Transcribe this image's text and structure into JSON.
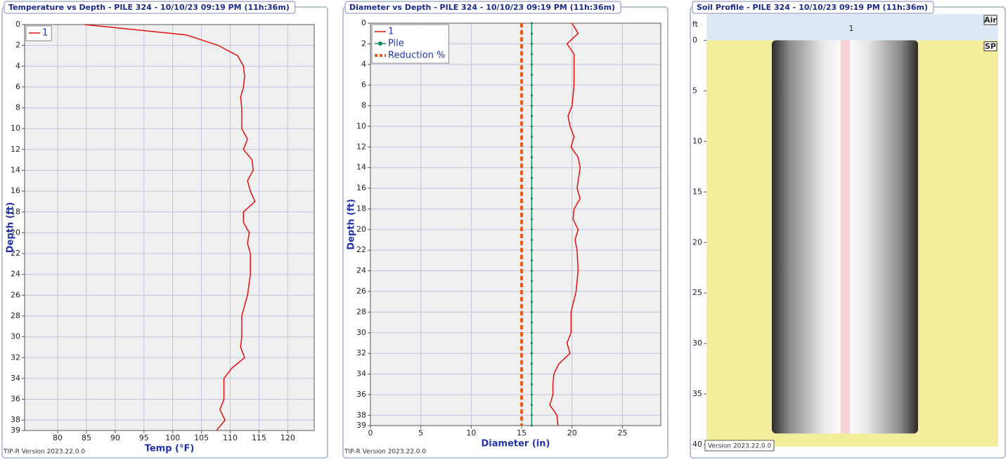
{
  "chart_data": [
    {
      "type": "line",
      "title": "Temperature vs Depth - PILE 324 - 10/10/23 09:19 PM (11h:36m)",
      "x_label": "Temp (°F)",
      "y_label": "Depth (ft)",
      "footer": "TIP-R Version 2023.22.0.0",
      "xlim": [
        74.25,
        124.6
      ],
      "xticks": [
        80,
        85,
        90,
        95,
        100,
        105,
        110,
        115,
        120
      ],
      "ylim": [
        0,
        39
      ],
      "yticks": [
        0,
        2,
        4,
        6,
        8,
        10,
        12,
        14,
        16,
        18,
        20,
        22,
        24,
        26,
        28,
        30,
        32,
        34,
        36,
        38,
        39
      ],
      "grid": true,
      "legend": "upper left",
      "series": [
        {
          "name": "1",
          "color": "#e01010",
          "x": [
            84.7,
            102.4,
            107.9,
            111.3,
            112.3,
            112.5,
            112.3,
            111.8,
            112.0,
            112.0,
            113.0,
            112.3,
            113.8,
            114.0,
            113.0,
            113.5,
            114.3,
            112.3,
            112.3,
            113.3,
            113.0,
            113.5,
            113.5,
            113.0,
            112.5,
            112.0,
            112.0,
            111.8,
            112.5,
            110.3,
            108.9,
            108.9,
            108.2,
            109.1,
            107.6
          ],
          "y": [
            0,
            1,
            2,
            3,
            4,
            5,
            6,
            7,
            8,
            10,
            11,
            12,
            13,
            14,
            15,
            16,
            17,
            18,
            19,
            20,
            21,
            22,
            24,
            26,
            27,
            28,
            30,
            31,
            32,
            33,
            34,
            36,
            37,
            38,
            39
          ]
        }
      ]
    },
    {
      "type": "line",
      "title": "Diameter vs Depth - PILE 324 - 10/10/23 09:19 PM (11h:36m)",
      "x_label": "Diameter (in)",
      "y_label": "Depth (ft)",
      "footer": "TIP-R Version 2023.22.0.0",
      "xlim": [
        0,
        28.8
      ],
      "xticks": [
        0,
        5,
        10,
        15,
        20,
        25
      ],
      "ylim": [
        0,
        39
      ],
      "yticks": [
        0,
        2,
        4,
        6,
        8,
        10,
        12,
        14,
        16,
        18,
        20,
        22,
        24,
        26,
        28,
        30,
        32,
        34,
        36,
        38,
        39
      ],
      "grid": true,
      "legend": "upper left",
      "series": [
        {
          "name": "1",
          "color": "#e01010",
          "x": [
            20.0,
            20.6,
            19.5,
            20.2,
            20.2,
            20.2,
            20.0,
            19.6,
            19.8,
            20.2,
            19.9,
            20.6,
            20.8,
            20.5,
            20.8,
            20.2,
            20.1,
            20.6,
            20.3,
            20.5,
            20.6,
            20.4,
            19.9,
            19.9,
            19.5,
            19.8,
            18.7,
            18.2,
            18.1,
            18.1,
            17.8,
            18.5,
            18.6
          ],
          "y": [
            0,
            1,
            2,
            3,
            4,
            6,
            8,
            9,
            10,
            11,
            12,
            13,
            14,
            16,
            17,
            18,
            19,
            20,
            21,
            22,
            24,
            26,
            28,
            30,
            31,
            32,
            33,
            34,
            35,
            36,
            37,
            38,
            39
          ]
        },
        {
          "name": "Pile",
          "color": "#138a5a",
          "marker": true,
          "x": [
            16,
            16,
            16,
            16,
            16,
            16,
            16,
            16,
            16,
            16,
            16,
            16,
            16,
            16,
            16,
            16,
            16,
            16,
            16,
            16,
            16,
            16,
            16,
            16,
            16,
            16,
            16,
            16,
            16,
            16,
            16,
            16,
            16,
            16,
            16,
            16,
            16,
            16,
            16,
            16
          ],
          "y": [
            0,
            1,
            2,
            3,
            4,
            5,
            6,
            7,
            8,
            9,
            10,
            11,
            12,
            13,
            14,
            15,
            16,
            17,
            18,
            19,
            20,
            21,
            22,
            23,
            24,
            25,
            26,
            27,
            28,
            29,
            30,
            31,
            32,
            33,
            34,
            35,
            36,
            37,
            38,
            39
          ]
        },
        {
          "name": "Reduction %",
          "color": "#f05a10",
          "style": "dashed",
          "x": [
            15,
            15
          ],
          "y": [
            0,
            39
          ]
        }
      ]
    },
    {
      "type": "profile",
      "title": "Soil Profile - PILE 324 - 10/10/23 09:19 PM (11h:36m)",
      "y_unit": "ft",
      "footer": "Version 2023.22.0.0",
      "pile_label": "1",
      "ylim": [
        -2.6,
        40.2
      ],
      "yticks": [
        0,
        5,
        10,
        15,
        20,
        25,
        30,
        35,
        40
      ],
      "layers": [
        {
          "name": "Air",
          "top": -2.6,
          "bottom": 0,
          "color": "#dde9f5"
        },
        {
          "name": "SP",
          "top": 0,
          "bottom": 40.2,
          "color": "#f3ee9c"
        }
      ],
      "pile_top": 0,
      "pile_bottom": 38.9
    }
  ]
}
